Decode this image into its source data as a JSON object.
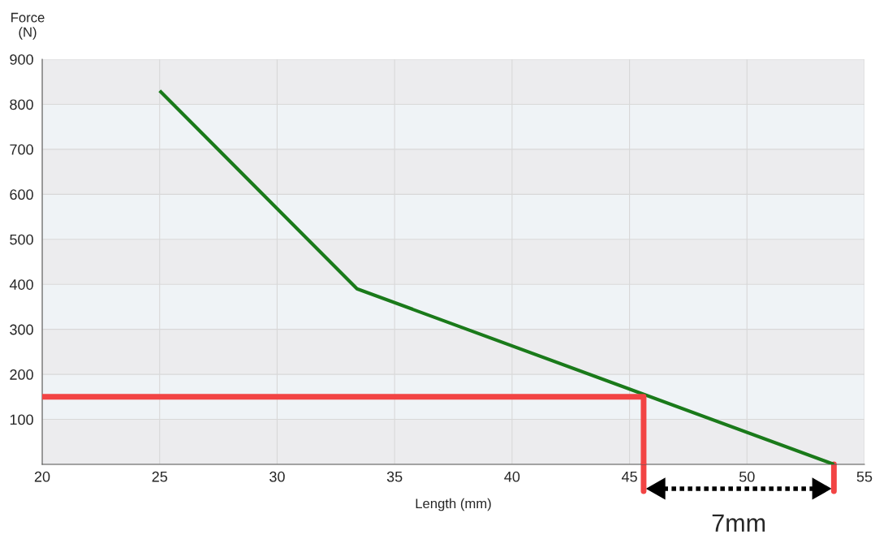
{
  "chart_data": {
    "type": "line",
    "ylabel": "Force\n(N)",
    "xlabel": "Length (mm)",
    "series": [
      {
        "color": "#1a7a1a",
        "x": [
          25,
          33.4,
          53.7
        ],
        "values": [
          830,
          390,
          0
        ]
      },
      {
        "color": "#f24444",
        "x": [
          20,
          45.6,
          45.6
        ],
        "values": [
          150,
          150,
          0
        ]
      }
    ],
    "xlim": [
      20,
      55
    ],
    "xticks": [
      20,
      25,
      30,
      35,
      40,
      45,
      50,
      55
    ],
    "ylim": [
      0,
      900
    ],
    "yticks": [
      {
        "value": 0,
        "label": null
      },
      100,
      200,
      300,
      400,
      500,
      600,
      700,
      800,
      900
    ],
    "grid": true,
    "legend": false,
    "marker": "none",
    "line_style": "solid",
    "annotations": [
      "7mm"
    ]
  }
}
